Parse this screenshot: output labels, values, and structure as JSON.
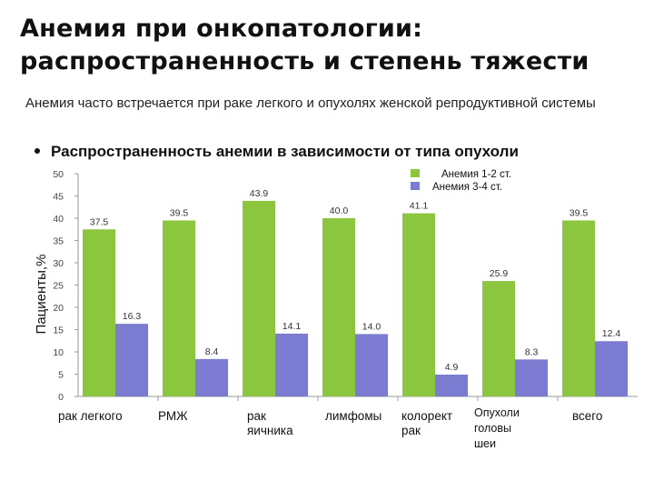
{
  "title": {
    "line1": "Анемия при онкопатологии:",
    "line2": "распространенность и степень тяжести"
  },
  "intro": "Анемия часто встречается при раке легкого и опухолях женской репродуктивной системы",
  "bullet": "Распространенность анемии в зависимости от типа опухоли",
  "chart_data": {
    "type": "bar",
    "ylabel": "Пациенты,%",
    "ylim": [
      0,
      50
    ],
    "yticks": [
      "0",
      "5",
      "10",
      "15",
      "20",
      "25",
      "30",
      "35",
      "40",
      "45",
      "50"
    ],
    "categories": [
      "рак легкого",
      "РМЖ",
      "рак\nяичника",
      "лимфомы",
      "колорект\nрак",
      "Опухоли\nголовы\nшеи",
      "всего"
    ],
    "series": [
      {
        "name": "Анемия 1-2 ст.",
        "color": "#8cc63f",
        "values": [
          37.5,
          39.5,
          43.9,
          40.0,
          41.1,
          25.9,
          39.5
        ],
        "labels": [
          "37.5",
          "39.5",
          "43.9",
          "40.0",
          "41.1",
          "25.9",
          "39.5"
        ]
      },
      {
        "name": "Анемия 3-4 ст.",
        "color": "#7b7bd1",
        "values": [
          16.3,
          8.4,
          14.1,
          14.0,
          4.9,
          8.3,
          12.4
        ],
        "labels": [
          "16.3",
          "8.4",
          "14.1",
          "14.0",
          "4.9",
          "8.3",
          "12.4"
        ]
      }
    ],
    "grid": false,
    "legend": "top-right"
  }
}
